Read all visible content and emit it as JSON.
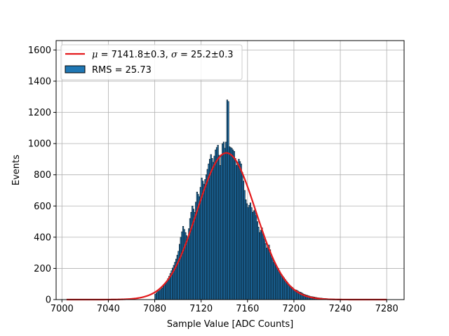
{
  "chart_data": {
    "type": "bar",
    "title": "",
    "xlabel": "Sample Value [ADC Counts]",
    "ylabel": "Events",
    "xlim": [
      6995,
      7295
    ],
    "ylim": [
      0,
      1660
    ],
    "grid": true,
    "legend_placement": "upper-left",
    "x_ticks": [
      7000,
      7040,
      7080,
      7120,
      7160,
      7200,
      7240,
      7280
    ],
    "y_ticks": [
      0,
      200,
      400,
      600,
      800,
      1000,
      1200,
      1400,
      1600
    ],
    "histogram": {
      "name": "RMS = 25.73",
      "bin_width": 1,
      "color": "#1f77b4",
      "edge_color": "#000000",
      "x": [
        7080,
        7082,
        7084,
        7086,
        7088,
        7090,
        7092,
        7094,
        7096,
        7098,
        7100,
        7102,
        7104,
        7106,
        7108,
        7110,
        7112,
        7114,
        7116,
        7118,
        7120,
        7122,
        7124,
        7126,
        7128,
        7130,
        7132,
        7134,
        7136,
        7138,
        7139,
        7140,
        7141,
        7142,
        7143,
        7144,
        7146,
        7148,
        7150,
        7152,
        7154,
        7156,
        7158,
        7160,
        7162,
        7164,
        7166,
        7168,
        7170,
        7172,
        7174,
        7176,
        7178,
        7180,
        7182,
        7184,
        7186,
        7188,
        7190,
        7192,
        7194,
        7196,
        7198,
        7200,
        7202,
        7204,
        7206,
        7208,
        7210,
        7212,
        7214,
        7216,
        7218,
        7220,
        7225,
        7230,
        7235,
        7240
      ],
      "values": [
        35,
        50,
        60,
        75,
        95,
        120,
        150,
        185,
        220,
        260,
        310,
        400,
        470,
        430,
        390,
        520,
        600,
        560,
        690,
        660,
        780,
        740,
        800,
        870,
        930,
        880,
        960,
        990,
        860,
        1000,
        1010,
        970,
        1010,
        1280,
        1270,
        980,
        970,
        950,
        860,
        900,
        870,
        760,
        640,
        590,
        620,
        560,
        580,
        500,
        430,
        460,
        390,
        330,
        350,
        290,
        240,
        220,
        200,
        170,
        150,
        130,
        110,
        90,
        80,
        65,
        60,
        50,
        45,
        35,
        30,
        25,
        20,
        18,
        15,
        12,
        8,
        5,
        3,
        2
      ]
    },
    "fit": {
      "name": "μ = 7141.8±0.3, σ = 25.2±0.3",
      "mu": 7141.8,
      "sigma": 25.2,
      "amplitude": 940,
      "x_range": [
        7004,
        7280
      ],
      "color": "#e41a1c"
    }
  },
  "legend": {
    "fit_mu_symbol": "μ",
    "fit_mu_text": " = 7141.8±0.3, ",
    "fit_sigma_symbol": "σ",
    "fit_sigma_text": " = 25.2±0.3",
    "histogram_label": "RMS = 25.73"
  }
}
